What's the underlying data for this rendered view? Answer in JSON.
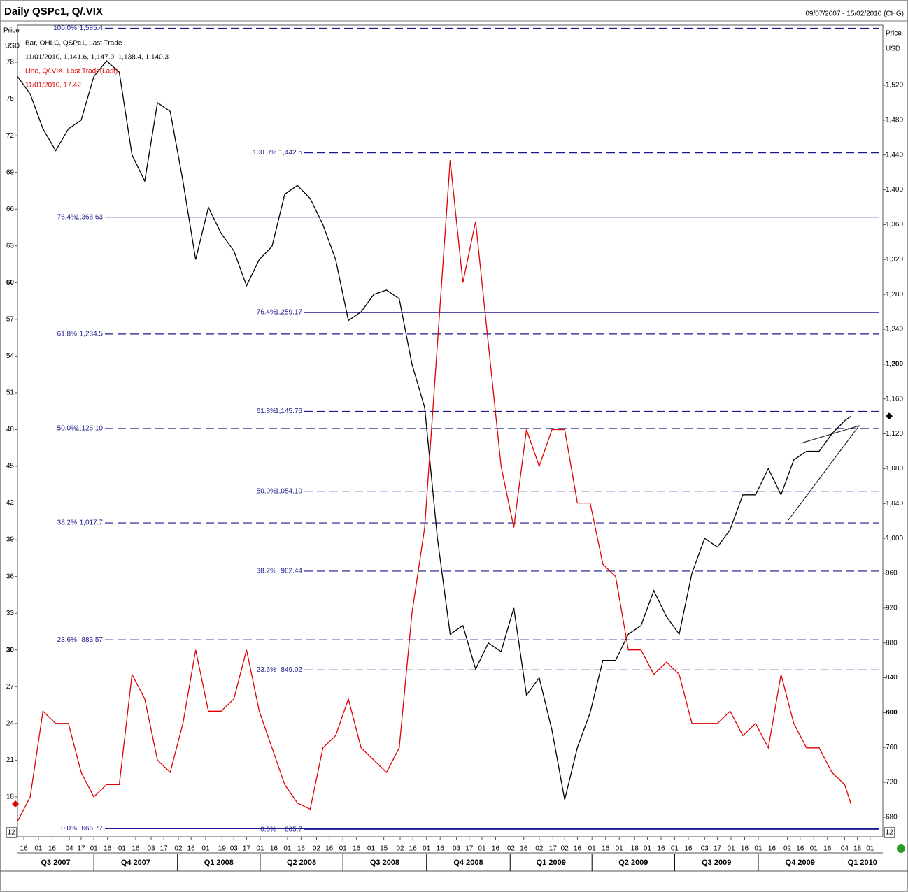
{
  "chart_data": {
    "type": "line",
    "title": "Daily QSPc1, Q/.VIX",
    "subtitle": "09/07/2007 - 15/02/2010 (CHG)",
    "y_axis_label": [
      "Price",
      "USD"
    ],
    "y2_axis_label": [
      "Price",
      "USD"
    ],
    "corner_labels": [
      "12",
      "12"
    ],
    "legend_text": [
      [
        "Bar, OHLC, QSPc1, Last Trade",
        "11/01/2010, 1,141.6, 1,147.9, 1,138.4, 1,140.3"
      ],
      [
        "Line, Q/.VIX, Last Trade(Last)",
        "11/01/2010, 17.42"
      ]
    ],
    "x": [
      "2007-07-09",
      "2007-07-23",
      "2007-08-06",
      "2007-08-20",
      "2007-09-03",
      "2007-09-17",
      "2007-10-01",
      "2007-10-15",
      "2007-10-29",
      "2007-11-12",
      "2007-11-26",
      "2007-12-10",
      "2007-12-24",
      "2008-01-07",
      "2008-01-21",
      "2008-02-04",
      "2008-02-18",
      "2008-03-03",
      "2008-03-17",
      "2008-03-31",
      "2008-04-14",
      "2008-04-28",
      "2008-05-12",
      "2008-05-26",
      "2008-06-09",
      "2008-06-23",
      "2008-07-07",
      "2008-07-21",
      "2008-08-04",
      "2008-08-18",
      "2008-09-01",
      "2008-09-15",
      "2008-09-29",
      "2008-10-13",
      "2008-10-27",
      "2008-11-10",
      "2008-11-24",
      "2008-12-08",
      "2008-12-22",
      "2009-01-05",
      "2009-01-19",
      "2009-02-02",
      "2009-02-16",
      "2009-03-02",
      "2009-03-16",
      "2009-03-30",
      "2009-04-13",
      "2009-04-27",
      "2009-05-11",
      "2009-05-25",
      "2009-06-08",
      "2009-06-22",
      "2009-07-06",
      "2009-07-20",
      "2009-08-03",
      "2009-08-17",
      "2009-08-31",
      "2009-09-14",
      "2009-09-28",
      "2009-10-12",
      "2009-10-26",
      "2009-11-09",
      "2009-11-23",
      "2009-12-07",
      "2009-12-21",
      "2010-01-04",
      "2010-01-11"
    ],
    "series": [
      {
        "name": "QSPc1",
        "color": "#000000",
        "axis": "y2",
        "values": [
          1530,
          1510,
          1470,
          1445,
          1470,
          1480,
          1530,
          1548,
          1535,
          1440,
          1410,
          1500,
          1490,
          1410,
          1320,
          1380,
          1350,
          1330,
          1290,
          1320,
          1335,
          1395,
          1405,
          1390,
          1360,
          1320,
          1250,
          1260,
          1280,
          1285,
          1275,
          1200,
          1150,
          1000,
          890,
          900,
          850,
          880,
          870,
          920,
          820,
          840,
          780,
          700,
          760,
          800,
          860,
          860,
          890,
          900,
          940,
          910,
          890,
          960,
          1000,
          990,
          1010,
          1050,
          1050,
          1080,
          1050,
          1090,
          1100,
          1100,
          1120,
          1135,
          1140.3
        ]
      },
      {
        "name": "Q/.VIX",
        "color": "#e00000",
        "axis": "y",
        "values": [
          16,
          18,
          25,
          24,
          24,
          20,
          18,
          19,
          19,
          28,
          26,
          21,
          20,
          24,
          30,
          25,
          25,
          26,
          30,
          25,
          22,
          19,
          17.5,
          17,
          22,
          23,
          26,
          22,
          21,
          20,
          22,
          33,
          40,
          55,
          70,
          60,
          65,
          55,
          45,
          40,
          48,
          45,
          48,
          48,
          42,
          42,
          37,
          36,
          30,
          30,
          28,
          29,
          28,
          24,
          24,
          24,
          25,
          23,
          24,
          22,
          28,
          24,
          22,
          22,
          20,
          19,
          17.42
        ]
      }
    ],
    "xlim": [
      "2007-07-09",
      "2010-02-15"
    ],
    "ylim": [
      14.74,
      80.8
    ],
    "yticks": [
      18,
      21,
      24,
      27,
      30,
      33,
      36,
      39,
      42,
      45,
      48,
      51,
      54,
      57,
      60,
      63,
      66,
      69,
      72,
      75,
      78
    ],
    "y2lim": [
      657.5,
      1585.8
    ],
    "y2ticks": [
      {
        "value": 680,
        "label": "680"
      },
      {
        "value": 720,
        "label": "720"
      },
      {
        "value": 760,
        "label": "760"
      },
      {
        "value": 800,
        "label": "800"
      },
      {
        "value": 840,
        "label": "840"
      },
      {
        "value": 880,
        "label": "880"
      },
      {
        "value": 920,
        "label": "920"
      },
      {
        "value": 960,
        "label": "960"
      },
      {
        "value": 1000,
        "label": "1,000"
      },
      {
        "value": 1040,
        "label": "1,040"
      },
      {
        "value": 1080,
        "label": "1,080"
      },
      {
        "value": 1120,
        "label": "1,120"
      },
      {
        "value": 1160,
        "label": "1,160"
      },
      {
        "value": 1200,
        "label": "1,200"
      },
      {
        "value": 1240,
        "label": "1,240"
      },
      {
        "value": 1280,
        "label": "1,280"
      },
      {
        "value": 1320,
        "label": "1,320"
      },
      {
        "value": 1360,
        "label": "1,360"
      },
      {
        "value": 1400,
        "label": "1,400"
      },
      {
        "value": 1440,
        "label": "1,440"
      },
      {
        "value": 1480,
        "label": "1,480"
      },
      {
        "value": 1520,
        "label": "1,520"
      }
    ],
    "xticks": [
      {
        "value": "2007-07-16",
        "label": "16"
      },
      {
        "value": "2007-08-01",
        "label": "01"
      },
      {
        "value": "2007-08-16",
        "label": "16"
      },
      {
        "value": "2007-09-04",
        "label": "04"
      },
      {
        "value": "2007-09-17",
        "label": "17"
      },
      {
        "value": "2007-10-01",
        "label": "01"
      },
      {
        "value": "2007-10-16",
        "label": "16"
      },
      {
        "value": "2007-11-01",
        "label": "01"
      },
      {
        "value": "2007-11-16",
        "label": "16"
      },
      {
        "value": "2007-12-03",
        "label": "03"
      },
      {
        "value": "2007-12-17",
        "label": "17"
      },
      {
        "value": "2008-01-02",
        "label": "02"
      },
      {
        "value": "2008-01-16",
        "label": "16"
      },
      {
        "value": "2008-02-01",
        "label": "01"
      },
      {
        "value": "2008-02-19",
        "label": "19"
      },
      {
        "value": "2008-03-03",
        "label": "03"
      },
      {
        "value": "2008-03-17",
        "label": "17"
      },
      {
        "value": "2008-04-01",
        "label": "01"
      },
      {
        "value": "2008-04-16",
        "label": "16"
      },
      {
        "value": "2008-05-01",
        "label": "01"
      },
      {
        "value": "2008-05-16",
        "label": "16"
      },
      {
        "value": "2008-06-02",
        "label": "02"
      },
      {
        "value": "2008-06-16",
        "label": "16"
      },
      {
        "value": "2008-07-01",
        "label": "01"
      },
      {
        "value": "2008-07-16",
        "label": "16"
      },
      {
        "value": "2008-08-01",
        "label": "01"
      },
      {
        "value": "2008-08-15",
        "label": "15"
      },
      {
        "value": "2008-09-02",
        "label": "02"
      },
      {
        "value": "2008-09-16",
        "label": "16"
      },
      {
        "value": "2008-10-01",
        "label": "01"
      },
      {
        "value": "2008-10-16",
        "label": "16"
      },
      {
        "value": "2008-11-03",
        "label": "03"
      },
      {
        "value": "2008-11-17",
        "label": "17"
      },
      {
        "value": "2008-12-01",
        "label": "01"
      },
      {
        "value": "2008-12-16",
        "label": "16"
      },
      {
        "value": "2009-01-02",
        "label": "02"
      },
      {
        "value": "2009-01-16",
        "label": "16"
      },
      {
        "value": "2009-02-02",
        "label": "02"
      },
      {
        "value": "2009-02-17",
        "label": "17"
      },
      {
        "value": "2009-03-02",
        "label": "02"
      },
      {
        "value": "2009-03-16",
        "label": "16"
      },
      {
        "value": "2009-04-01",
        "label": "01"
      },
      {
        "value": "2009-04-16",
        "label": "16"
      },
      {
        "value": "2009-05-01",
        "label": "01"
      },
      {
        "value": "2009-05-18",
        "label": "18"
      },
      {
        "value": "2009-06-01",
        "label": "01"
      },
      {
        "value": "2009-06-16",
        "label": "16"
      },
      {
        "value": "2009-07-01",
        "label": "01"
      },
      {
        "value": "2009-07-16",
        "label": "16"
      },
      {
        "value": "2009-08-03",
        "label": "03"
      },
      {
        "value": "2009-08-17",
        "label": "17"
      },
      {
        "value": "2009-09-01",
        "label": "01"
      },
      {
        "value": "2009-09-16",
        "label": "16"
      },
      {
        "value": "2009-10-01",
        "label": "01"
      },
      {
        "value": "2009-10-16",
        "label": "16"
      },
      {
        "value": "2009-11-02",
        "label": "02"
      },
      {
        "value": "2009-11-16",
        "label": "16"
      },
      {
        "value": "2009-12-01",
        "label": "01"
      },
      {
        "value": "2009-12-16",
        "label": "16"
      },
      {
        "value": "2010-01-04",
        "label": "04"
      },
      {
        "value": "2010-01-18",
        "label": "18"
      },
      {
        "value": "2010-02-01",
        "label": "01"
      }
    ],
    "quarters": [
      {
        "value": "2007-07-01",
        "label": "Q3 2007"
      },
      {
        "value": "2007-10-01",
        "label": "Q4 2007"
      },
      {
        "value": "2008-01-01",
        "label": "Q1 2008"
      },
      {
        "value": "2008-04-01",
        "label": "Q2 2008"
      },
      {
        "value": "2008-07-01",
        "label": "Q3 2008"
      },
      {
        "value": "2008-10-01",
        "label": "Q4 2008"
      },
      {
        "value": "2009-01-01",
        "label": "Q1 2009"
      },
      {
        "value": "2009-04-01",
        "label": "Q2 2009"
      },
      {
        "value": "2009-07-01",
        "label": "Q3 2009"
      },
      {
        "value": "2009-10-01",
        "label": "Q4 2009"
      },
      {
        "value": "2010-01-01",
        "label": "Q1 2010"
      }
    ],
    "fib_sets": [
      [
        {
          "label": "100.0%",
          "value": 1585.4,
          "value_label": "1,585.4",
          "style": "dashed"
        },
        {
          "label": "76.4%",
          "value": 1368.63,
          "value_label": "1,368.63",
          "style": "solid"
        },
        {
          "label": "61.8%",
          "value": 1234.5,
          "value_label": "1,234.5",
          "style": "dashed"
        },
        {
          "label": "50.0%",
          "value": 1126.1,
          "value_label": "1,126.10",
          "style": "dashed"
        },
        {
          "label": "38.2%",
          "value": 1017.7,
          "value_label": "1,017.7",
          "style": "dashed"
        },
        {
          "label": "23.6%",
          "value": 883.57,
          "value_label": "883.57",
          "style": "dashed"
        },
        {
          "label": "0.0%",
          "value": 666.77,
          "value_label": "666.77",
          "style": "solid"
        }
      ],
      [
        {
          "label": "100.0%",
          "value": 1442.5,
          "value_label": "1,442.5",
          "style": "dashed"
        },
        {
          "label": "76.4%",
          "value": 1259.17,
          "value_label": "1,259.17",
          "style": "solid"
        },
        {
          "label": "61.8%",
          "value": 1145.76,
          "value_label": "1,145.76",
          "style": "dashed"
        },
        {
          "label": "50.0%",
          "value": 1054.1,
          "value_label": "1,054.10",
          "style": "dashed"
        },
        {
          "label": "38.2%",
          "value": 962.44,
          "value_label": "962.44",
          "style": "dashed"
        },
        {
          "label": "23.6%",
          "value": 849.02,
          "value_label": "849.02",
          "style": "dashed"
        },
        {
          "label": "0.0%",
          "value": 665.7,
          "value_label": "665.7",
          "style": "solid"
        }
      ]
    ],
    "fib_color": "#1a1a8c"
  }
}
